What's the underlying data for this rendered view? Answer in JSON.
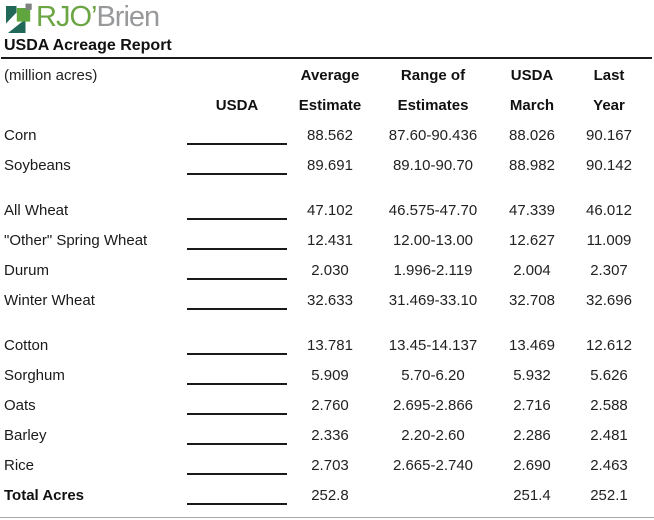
{
  "logo": {
    "brand_green": "RJO’",
    "brand_gray": "Brien",
    "icon": "rjo-flag-mark"
  },
  "title": "USDA Acreage Report",
  "table": {
    "unit_note": "(million acres)",
    "columns": {
      "usda": "USDA",
      "average_estimate": [
        "Average",
        "Estimate"
      ],
      "range_of_estimates": [
        "Range of",
        "Estimates"
      ],
      "usda_march": [
        "USDA",
        "March"
      ],
      "last_year": [
        "Last",
        "Year"
      ]
    },
    "rows": [
      {
        "name": "Corn",
        "usda": "",
        "average_estimate": "88.562",
        "range_of_estimates": "87.60-90.436",
        "usda_march": "88.026",
        "last_year": "90.167",
        "bold": false,
        "gap_after": false
      },
      {
        "name": "Soybeans",
        "usda": "",
        "average_estimate": "89.691",
        "range_of_estimates": "89.10-90.70",
        "usda_march": "88.982",
        "last_year": "90.142",
        "bold": false,
        "gap_after": true
      },
      {
        "name": "All Wheat",
        "usda": "",
        "average_estimate": "47.102",
        "range_of_estimates": "46.575-47.70",
        "usda_march": "47.339",
        "last_year": "46.012",
        "bold": false,
        "gap_after": false
      },
      {
        "name": "\"Other\" Spring Wheat",
        "usda": "",
        "average_estimate": "12.431",
        "range_of_estimates": "12.00-13.00",
        "usda_march": "12.627",
        "last_year": "11.009",
        "bold": false,
        "gap_after": false
      },
      {
        "name": "Durum",
        "usda": "",
        "average_estimate": "2.030",
        "range_of_estimates": "1.996-2.119",
        "usda_march": "2.004",
        "last_year": "2.307",
        "bold": false,
        "gap_after": false
      },
      {
        "name": "Winter Wheat",
        "usda": "",
        "average_estimate": "32.633",
        "range_of_estimates": "31.469-33.10",
        "usda_march": "32.708",
        "last_year": "32.696",
        "bold": false,
        "gap_after": true
      },
      {
        "name": "Cotton",
        "usda": "",
        "average_estimate": "13.781",
        "range_of_estimates": "13.45-14.137",
        "usda_march": "13.469",
        "last_year": "12.612",
        "bold": false,
        "gap_after": false
      },
      {
        "name": "Sorghum",
        "usda": "",
        "average_estimate": "5.909",
        "range_of_estimates": "5.70-6.20",
        "usda_march": "5.932",
        "last_year": "5.626",
        "bold": false,
        "gap_after": false
      },
      {
        "name": "Oats",
        "usda": "",
        "average_estimate": "2.760",
        "range_of_estimates": "2.695-2.866",
        "usda_march": "2.716",
        "last_year": "2.588",
        "bold": false,
        "gap_after": false
      },
      {
        "name": "Barley",
        "usda": "",
        "average_estimate": "2.336",
        "range_of_estimates": "2.20-2.60",
        "usda_march": "2.286",
        "last_year": "2.481",
        "bold": false,
        "gap_after": false
      },
      {
        "name": "Rice",
        "usda": "",
        "average_estimate": "2.703",
        "range_of_estimates": "2.665-2.740",
        "usda_march": "2.690",
        "last_year": "2.463",
        "bold": false,
        "gap_after": false
      },
      {
        "name": "Total Acres",
        "usda": "",
        "average_estimate": "252.8",
        "range_of_estimates": "",
        "usda_march": "251.4",
        "last_year": "252.1",
        "bold": true,
        "gap_after": false
      }
    ]
  },
  "colors": {
    "brand_green": "#6CA544",
    "brand_gray": "#97999B",
    "icon_teal": "#20685A",
    "icon_green": "#5EA63D",
    "icon_gray": "#7E8081",
    "text": "#1a1a1a",
    "rule_dark": "#1c1c1c",
    "rule_light": "#a9a9a9"
  }
}
